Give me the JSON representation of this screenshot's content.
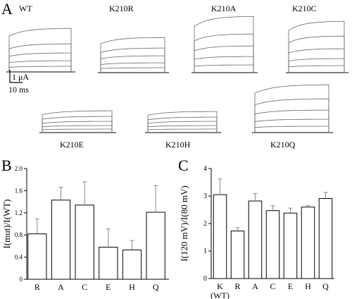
{
  "panel_labels": {
    "a": "A",
    "b": "B",
    "c": "C"
  },
  "traces": {
    "scale_current": "1 μA",
    "scale_time": "10 ms",
    "mutants": [
      {
        "label": "WT"
      },
      {
        "label": "K210R"
      },
      {
        "label": "K210A"
      },
      {
        "label": "K210C"
      },
      {
        "label": "K210E"
      },
      {
        "label": "K210H"
      },
      {
        "label": "K210Q"
      }
    ]
  },
  "chart_data": [
    {
      "type": "bar",
      "ylabel": "I(mut)/I(WT)",
      "ylim": [
        0,
        2.0
      ],
      "yticks": [
        "0",
        "0.4",
        "0.8",
        "1.2",
        "1.6",
        "2.0"
      ],
      "categories": [
        "R",
        "A",
        "C",
        "E",
        "H",
        "Q"
      ],
      "values": [
        0.82,
        1.43,
        1.34,
        0.58,
        0.53,
        1.21
      ],
      "errors": [
        0.27,
        0.23,
        0.42,
        0.33,
        0.17,
        0.48
      ],
      "color": "#ffffff"
    },
    {
      "type": "bar",
      "ylabel": "I(120 mV)/I(80 mV)",
      "ylim": [
        0,
        4
      ],
      "yticks": [
        "0",
        "1",
        "2",
        "3",
        "4"
      ],
      "categories": [
        "K (WT)",
        "R",
        "A",
        "C",
        "E",
        "H",
        "Q"
      ],
      "values": [
        3.05,
        1.73,
        2.82,
        2.47,
        2.38,
        2.6,
        2.91
      ],
      "errors": [
        0.57,
        0.12,
        0.27,
        0.18,
        0.18,
        0.06,
        0.22
      ],
      "color": "#ffffff"
    }
  ]
}
